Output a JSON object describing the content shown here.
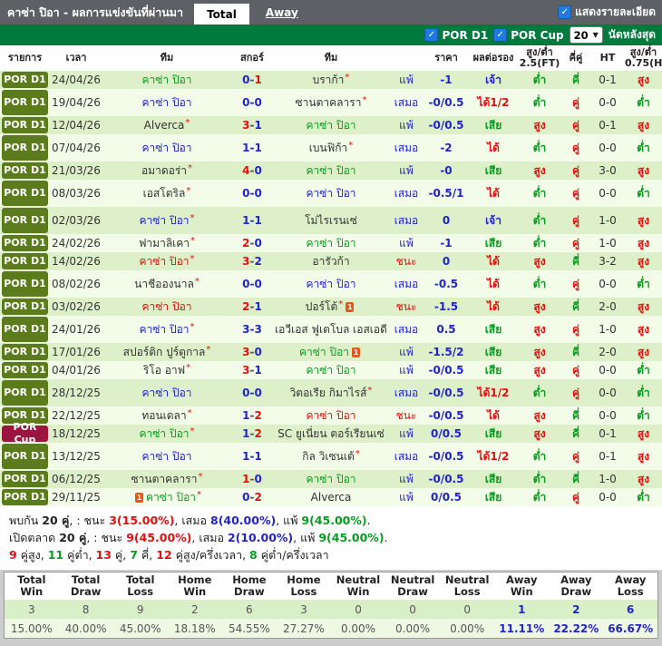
{
  "topbar": {
    "title": "คาซ่า ปิอา - ผลการแข่งขันที่ผ่านมา",
    "tab_total": "Total",
    "tab_away": "Away",
    "details_label": "แสดงรายละเอียด",
    "details_checked": true
  },
  "filterbar": {
    "league1": "POR D1",
    "league1_checked": true,
    "league2": "POR Cup",
    "league2_checked": true,
    "count_value": "20",
    "count_label": "นัดหลังสุด"
  },
  "colors": {
    "topbar_gray": "#5d6165",
    "filterbar_green": "#007a3d",
    "badge_por_d1": "#5b7b1d",
    "badge_por_cup": "#9d1440",
    "win_red": "#e01010",
    "draw_blue": "#2323cc",
    "loss_green": "#089c20",
    "row_dark": "#ddf0c9",
    "row_light": "#f3fbe9"
  },
  "table": {
    "headers": [
      "รายการ",
      "เวลา",
      "ทีม",
      "สกอร์",
      "ทีม",
      "",
      "ราคา",
      "ผลต่อรอง",
      "สูง/ต่ำ 2.5(FT)",
      "คี่คู่",
      "HT",
      "สูง/ต่ำ 0.75(HT)"
    ],
    "rows": [
      {
        "league": "POR D1",
        "type": "d1",
        "date": "24/04/26",
        "home": {
          "name": "คาซ่า ปิอา",
          "res": "loss"
        },
        "score": {
          "h": "0",
          "a": "1",
          "win": "away"
        },
        "away": {
          "name": "บราก้า",
          "res": "other",
          "star": true
        },
        "result": {
          "t": "แพ้",
          "c": "blue"
        },
        "hcp": "-1",
        "hres": {
          "t": "เจ้า",
          "c": "blue"
        },
        "ou25": {
          "t": "ต่ำ",
          "c": "green"
        },
        "oe": {
          "t": "คี่",
          "c": "green"
        },
        "ht": "0-1",
        "ou075": {
          "t": "สูง",
          "c": "red"
        }
      },
      {
        "league": "POR D1",
        "type": "d1",
        "date": "19/04/26",
        "home": {
          "name": "คาซ่า ปิอา",
          "res": "draw"
        },
        "score": {
          "h": "0",
          "a": "0",
          "win": "draw"
        },
        "away": {
          "name": "ซานตาคลารา",
          "res": "other",
          "star": true
        },
        "result": {
          "t": "เสมอ",
          "c": "blue"
        },
        "hcp": "-0/0.5",
        "hres": {
          "t": "ได้1/2",
          "c": "red"
        },
        "ou25": {
          "t": "ต่ำ",
          "c": "green"
        },
        "oe": {
          "t": "คู่",
          "c": "red"
        },
        "ht": "0-0",
        "ou075": {
          "t": "ต่ำ",
          "c": "green"
        }
      },
      {
        "league": "POR D1",
        "type": "d1",
        "date": "12/04/26",
        "home": {
          "name": "Alverca",
          "res": "other",
          "star": true
        },
        "score": {
          "h": "3",
          "a": "1",
          "win": "home"
        },
        "away": {
          "name": "คาซ่า ปิอา",
          "res": "loss"
        },
        "result": {
          "t": "แพ้",
          "c": "blue"
        },
        "hcp": "-0/0.5",
        "hres": {
          "t": "เสีย",
          "c": "green"
        },
        "ou25": {
          "t": "สูง",
          "c": "red"
        },
        "oe": {
          "t": "คู่",
          "c": "red"
        },
        "ht": "0-1",
        "ou075": {
          "t": "สูง",
          "c": "red"
        }
      },
      {
        "league": "POR D1",
        "type": "d1",
        "date": "07/04/26",
        "home": {
          "name": "คาซ่า ปิอา",
          "res": "draw"
        },
        "score": {
          "h": "1",
          "a": "1",
          "win": "draw"
        },
        "away": {
          "name": "เบนฟิก้า",
          "res": "other",
          "star": true
        },
        "result": {
          "t": "เสมอ",
          "c": "blue"
        },
        "hcp": "-2",
        "hres": {
          "t": "ได้",
          "c": "red"
        },
        "ou25": {
          "t": "ต่ำ",
          "c": "green"
        },
        "oe": {
          "t": "คู่",
          "c": "red"
        },
        "ht": "0-0",
        "ou075": {
          "t": "ต่ำ",
          "c": "green"
        }
      },
      {
        "league": "POR D1",
        "type": "d1",
        "date": "21/03/26",
        "home": {
          "name": "อมาดอร่า",
          "res": "other",
          "star": true
        },
        "score": {
          "h": "4",
          "a": "0",
          "win": "home"
        },
        "away": {
          "name": "คาซ่า ปิอา",
          "res": "loss"
        },
        "result": {
          "t": "แพ้",
          "c": "blue"
        },
        "hcp": "-0",
        "hres": {
          "t": "เสีย",
          "c": "green"
        },
        "ou25": {
          "t": "สูง",
          "c": "red"
        },
        "oe": {
          "t": "คู่",
          "c": "red"
        },
        "ht": "3-0",
        "ou075": {
          "t": "สูง",
          "c": "red"
        }
      },
      {
        "league": "POR D1",
        "type": "d1",
        "date": "08/03/26",
        "home": {
          "name": "เอสโตริล",
          "res": "other",
          "star": true
        },
        "score": {
          "h": "0",
          "a": "0",
          "win": "draw"
        },
        "away": {
          "name": "คาซ่า ปิอา",
          "res": "draw"
        },
        "result": {
          "t": "เสมอ",
          "c": "blue"
        },
        "hcp": "-0.5/1",
        "hres": {
          "t": "ได้",
          "c": "red"
        },
        "ou25": {
          "t": "ต่ำ",
          "c": "green"
        },
        "oe": {
          "t": "คู่",
          "c": "red"
        },
        "ht": "0-0",
        "ou075": {
          "t": "ต่ำ",
          "c": "green"
        }
      },
      {
        "league": "POR D1",
        "type": "d1",
        "date": "02/03/26",
        "home": {
          "name": "คาซ่า ปิอา",
          "res": "draw",
          "star": true
        },
        "score": {
          "h": "1",
          "a": "1",
          "win": "draw"
        },
        "away": {
          "name": "โม่ไรเรนเซ่",
          "res": "other"
        },
        "result": {
          "t": "เสมอ",
          "c": "blue"
        },
        "hcp": "0",
        "hres": {
          "t": "เจ้า",
          "c": "blue"
        },
        "ou25": {
          "t": "ต่ำ",
          "c": "green"
        },
        "oe": {
          "t": "คู่",
          "c": "red"
        },
        "ht": "1-0",
        "ou075": {
          "t": "สูง",
          "c": "red"
        }
      },
      {
        "league": "POR D1",
        "type": "d1",
        "date": "24/02/26",
        "home": {
          "name": "ฟามาลิเคา",
          "res": "other",
          "star": true
        },
        "score": {
          "h": "2",
          "a": "0",
          "win": "home"
        },
        "away": {
          "name": "คาซ่า ปิอา",
          "res": "loss"
        },
        "result": {
          "t": "แพ้",
          "c": "blue"
        },
        "hcp": "-1",
        "hres": {
          "t": "เสีย",
          "c": "green"
        },
        "ou25": {
          "t": "ต่ำ",
          "c": "green"
        },
        "oe": {
          "t": "คู่",
          "c": "red"
        },
        "ht": "1-0",
        "ou075": {
          "t": "สูง",
          "c": "red"
        }
      },
      {
        "league": "POR D1",
        "type": "d1",
        "date": "14/02/26",
        "home": {
          "name": "คาซ่า ปิอา",
          "res": "win",
          "star": true
        },
        "score": {
          "h": "3",
          "a": "2",
          "win": "home"
        },
        "away": {
          "name": "อารัวก้า",
          "res": "other"
        },
        "result": {
          "t": "ชนะ",
          "c": "red"
        },
        "hcp": "0",
        "hres": {
          "t": "ได้",
          "c": "red"
        },
        "ou25": {
          "t": "สูง",
          "c": "red"
        },
        "oe": {
          "t": "คี่",
          "c": "green"
        },
        "ht": "3-2",
        "ou075": {
          "t": "สูง",
          "c": "red"
        }
      },
      {
        "league": "POR D1",
        "type": "d1",
        "date": "08/02/26",
        "home": {
          "name": "นาชีอองนาล",
          "res": "other",
          "star": true
        },
        "score": {
          "h": "0",
          "a": "0",
          "win": "draw"
        },
        "away": {
          "name": "คาซ่า ปิอา",
          "res": "draw"
        },
        "result": {
          "t": "เสมอ",
          "c": "blue"
        },
        "hcp": "-0.5",
        "hres": {
          "t": "ได้",
          "c": "red"
        },
        "ou25": {
          "t": "ต่ำ",
          "c": "green"
        },
        "oe": {
          "t": "คู่",
          "c": "red"
        },
        "ht": "0-0",
        "ou075": {
          "t": "ต่ำ",
          "c": "green"
        }
      },
      {
        "league": "POR D1",
        "type": "d1",
        "date": "03/02/26",
        "home": {
          "name": "คาซ่า ปิอา",
          "res": "win"
        },
        "score": {
          "h": "2",
          "a": "1",
          "win": "home"
        },
        "away": {
          "name": "ปอร์โต้",
          "res": "other",
          "star": true,
          "card": true
        },
        "result": {
          "t": "ชนะ",
          "c": "red"
        },
        "hcp": "-1.5",
        "hres": {
          "t": "ได้",
          "c": "red"
        },
        "ou25": {
          "t": "สูง",
          "c": "red"
        },
        "oe": {
          "t": "คี่",
          "c": "green"
        },
        "ht": "2-0",
        "ou075": {
          "t": "สูง",
          "c": "red"
        }
      },
      {
        "league": "POR D1",
        "type": "d1",
        "date": "24/01/26",
        "home": {
          "name": "คาซ่า ปิอา",
          "res": "draw",
          "star": true
        },
        "score": {
          "h": "3",
          "a": "3",
          "win": "draw"
        },
        "away": {
          "name": "เอวีเอส ฟูเตโบล เอสเอดี",
          "res": "other"
        },
        "result": {
          "t": "เสมอ",
          "c": "blue"
        },
        "hcp": "0.5",
        "hres": {
          "t": "เสีย",
          "c": "green"
        },
        "ou25": {
          "t": "สูง",
          "c": "red"
        },
        "oe": {
          "t": "คู่",
          "c": "red"
        },
        "ht": "1-0",
        "ou075": {
          "t": "สูง",
          "c": "red"
        }
      },
      {
        "league": "POR D1",
        "type": "d1",
        "date": "17/01/26",
        "home": {
          "name": "สปอร์ติก ปูร์ตูกาล",
          "res": "other",
          "star": true
        },
        "score": {
          "h": "3",
          "a": "0",
          "win": "home"
        },
        "away": {
          "name": "คาซ่า ปิอา",
          "res": "loss",
          "card": true
        },
        "result": {
          "t": "แพ้",
          "c": "blue"
        },
        "hcp": "-1.5/2",
        "hres": {
          "t": "เสีย",
          "c": "green"
        },
        "ou25": {
          "t": "สูง",
          "c": "red"
        },
        "oe": {
          "t": "คี่",
          "c": "green"
        },
        "ht": "2-0",
        "ou075": {
          "t": "สูง",
          "c": "red"
        }
      },
      {
        "league": "POR D1",
        "type": "d1",
        "date": "04/01/26",
        "home": {
          "name": "ริโอ อาฟ",
          "res": "other",
          "star": true
        },
        "score": {
          "h": "3",
          "a": "1",
          "win": "home"
        },
        "away": {
          "name": "คาซ่า ปิอา",
          "res": "loss"
        },
        "result": {
          "t": "แพ้",
          "c": "blue"
        },
        "hcp": "-0/0.5",
        "hres": {
          "t": "เสีย",
          "c": "green"
        },
        "ou25": {
          "t": "สูง",
          "c": "red"
        },
        "oe": {
          "t": "คู่",
          "c": "red"
        },
        "ht": "0-0",
        "ou075": {
          "t": "ต่ำ",
          "c": "green"
        }
      },
      {
        "league": "POR D1",
        "type": "d1",
        "date": "28/12/25",
        "home": {
          "name": "คาซ่า ปิอา",
          "res": "draw"
        },
        "score": {
          "h": "0",
          "a": "0",
          "win": "draw"
        },
        "away": {
          "name": "วิตอเรีย กิมาไรส์",
          "res": "other",
          "star": true
        },
        "result": {
          "t": "เสมอ",
          "c": "blue"
        },
        "hcp": "-0/0.5",
        "hres": {
          "t": "ได้1/2",
          "c": "red"
        },
        "ou25": {
          "t": "ต่ำ",
          "c": "green"
        },
        "oe": {
          "t": "คู่",
          "c": "red"
        },
        "ht": "0-0",
        "ou075": {
          "t": "ต่ำ",
          "c": "green"
        }
      },
      {
        "league": "POR D1",
        "type": "d1",
        "date": "22/12/25",
        "home": {
          "name": "ทอนเดลา",
          "res": "other",
          "star": true
        },
        "score": {
          "h": "1",
          "a": "2",
          "win": "away"
        },
        "away": {
          "name": "คาซ่า ปิอา",
          "res": "win"
        },
        "result": {
          "t": "ชนะ",
          "c": "red"
        },
        "hcp": "-0/0.5",
        "hres": {
          "t": "ได้",
          "c": "red"
        },
        "ou25": {
          "t": "สูง",
          "c": "red"
        },
        "oe": {
          "t": "คี่",
          "c": "green"
        },
        "ht": "0-0",
        "ou075": {
          "t": "ต่ำ",
          "c": "green"
        }
      },
      {
        "league": "POR Cup",
        "type": "cup",
        "date": "18/12/25",
        "home": {
          "name": "คาซ่า ปิอา",
          "res": "loss",
          "star": true
        },
        "score": {
          "h": "1",
          "a": "2",
          "win": "away"
        },
        "away": {
          "name": "SC ยูเนี่ยน ตอร์เรียนเซ่",
          "res": "other"
        },
        "result": {
          "t": "แพ้",
          "c": "blue"
        },
        "hcp": "0/0.5",
        "hres": {
          "t": "เสีย",
          "c": "green"
        },
        "ou25": {
          "t": "สูง",
          "c": "red"
        },
        "oe": {
          "t": "คี่",
          "c": "green"
        },
        "ht": "0-1",
        "ou075": {
          "t": "สูง",
          "c": "red"
        }
      },
      {
        "league": "POR D1",
        "type": "d1",
        "date": "13/12/25",
        "home": {
          "name": "คาซ่า ปิอา",
          "res": "draw"
        },
        "score": {
          "h": "1",
          "a": "1",
          "win": "draw"
        },
        "away": {
          "name": "กิล วิเซนเต้",
          "res": "other",
          "star": true
        },
        "result": {
          "t": "เสมอ",
          "c": "blue"
        },
        "hcp": "-0/0.5",
        "hres": {
          "t": "ได้1/2",
          "c": "red"
        },
        "ou25": {
          "t": "ต่ำ",
          "c": "green"
        },
        "oe": {
          "t": "คู่",
          "c": "red"
        },
        "ht": "0-1",
        "ou075": {
          "t": "สูง",
          "c": "red"
        }
      },
      {
        "league": "POR D1",
        "type": "d1",
        "date": "06/12/25",
        "home": {
          "name": "ซานตาคลารา",
          "res": "other",
          "star": true
        },
        "score": {
          "h": "1",
          "a": "0",
          "win": "home"
        },
        "away": {
          "name": "คาซ่า ปิอา",
          "res": "loss"
        },
        "result": {
          "t": "แพ้",
          "c": "blue"
        },
        "hcp": "-0/0.5",
        "hres": {
          "t": "เสีย",
          "c": "green"
        },
        "ou25": {
          "t": "ต่ำ",
          "c": "green"
        },
        "oe": {
          "t": "คี่",
          "c": "green"
        },
        "ht": "1-0",
        "ou075": {
          "t": "สูง",
          "c": "red"
        }
      },
      {
        "league": "POR D1",
        "type": "d1",
        "date": "29/11/25",
        "home": {
          "name": "คาซ่า ปิอา",
          "res": "loss",
          "star": true,
          "card": "before"
        },
        "score": {
          "h": "0",
          "a": "2",
          "win": "away"
        },
        "away": {
          "name": "Alverca",
          "res": "other"
        },
        "result": {
          "t": "แพ้",
          "c": "blue"
        },
        "hcp": "0/0.5",
        "hres": {
          "t": "เสีย",
          "c": "green"
        },
        "ou25": {
          "t": "ต่ำ",
          "c": "green"
        },
        "oe": {
          "t": "คู่",
          "c": "red"
        },
        "ht": "0-0",
        "ou075": {
          "t": "ต่ำ",
          "c": "green"
        }
      }
    ]
  },
  "summary": {
    "lines": [
      [
        {
          "t": "พบกัน ",
          "c": "dark"
        },
        {
          "t": "20 คู่",
          "c": "darkb"
        },
        {
          "t": ", : ชนะ ",
          "c": "dark"
        },
        {
          "t": "3(15.00%)",
          "c": "red"
        },
        {
          "t": ", เสมอ ",
          "c": "dark"
        },
        {
          "t": "8(40.00%)",
          "c": "blue"
        },
        {
          "t": ", แพ้ ",
          "c": "dark"
        },
        {
          "t": "9(45.00%)",
          "c": "green"
        },
        {
          "t": ".",
          "c": "dark"
        }
      ],
      [
        {
          "t": "เปิดตลาด ",
          "c": "dark"
        },
        {
          "t": "20 คู่",
          "c": "darkb"
        },
        {
          "t": ", : ชนะ ",
          "c": "dark"
        },
        {
          "t": "9(45.00%)",
          "c": "red"
        },
        {
          "t": ", เสมอ ",
          "c": "dark"
        },
        {
          "t": "2(10.00%)",
          "c": "blue"
        },
        {
          "t": ", แพ้ ",
          "c": "dark"
        },
        {
          "t": "9(45.00%)",
          "c": "green"
        },
        {
          "t": ".",
          "c": "dark"
        }
      ],
      [
        {
          "t": "9",
          "c": "red"
        },
        {
          "t": " คู่สูง, ",
          "c": "dark"
        },
        {
          "t": "11",
          "c": "green"
        },
        {
          "t": " คู่ต่ำ, ",
          "c": "dark"
        },
        {
          "t": "13",
          "c": "red"
        },
        {
          "t": " คู่, ",
          "c": "dark"
        },
        {
          "t": "7",
          "c": "green"
        },
        {
          "t": " คี่, ",
          "c": "dark"
        },
        {
          "t": "12",
          "c": "red"
        },
        {
          "t": " คู่สูง/ครึ่งเวลา, ",
          "c": "dark"
        },
        {
          "t": "8",
          "c": "green"
        },
        {
          "t": " คู่ต่ำ/ครึ่งเวลา",
          "c": "dark"
        }
      ]
    ]
  },
  "stats": {
    "headers": [
      "Total Win",
      "Total Draw",
      "Total Loss",
      "Home Win",
      "Home Draw",
      "Home Loss",
      "Neutral Win",
      "Neutral Draw",
      "Neutral Loss",
      "Away Win",
      "Away Draw",
      "Away Loss"
    ],
    "counts": [
      "3",
      "8",
      "9",
      "2",
      "6",
      "3",
      "0",
      "0",
      "0",
      "1",
      "2",
      "6"
    ],
    "percents": [
      "15.00%",
      "40.00%",
      "45.00%",
      "18.18%",
      "54.55%",
      "27.27%",
      "0.00%",
      "0.00%",
      "0.00%",
      "11.11%",
      "22.22%",
      "66.67%"
    ],
    "highlight_from": 9
  }
}
